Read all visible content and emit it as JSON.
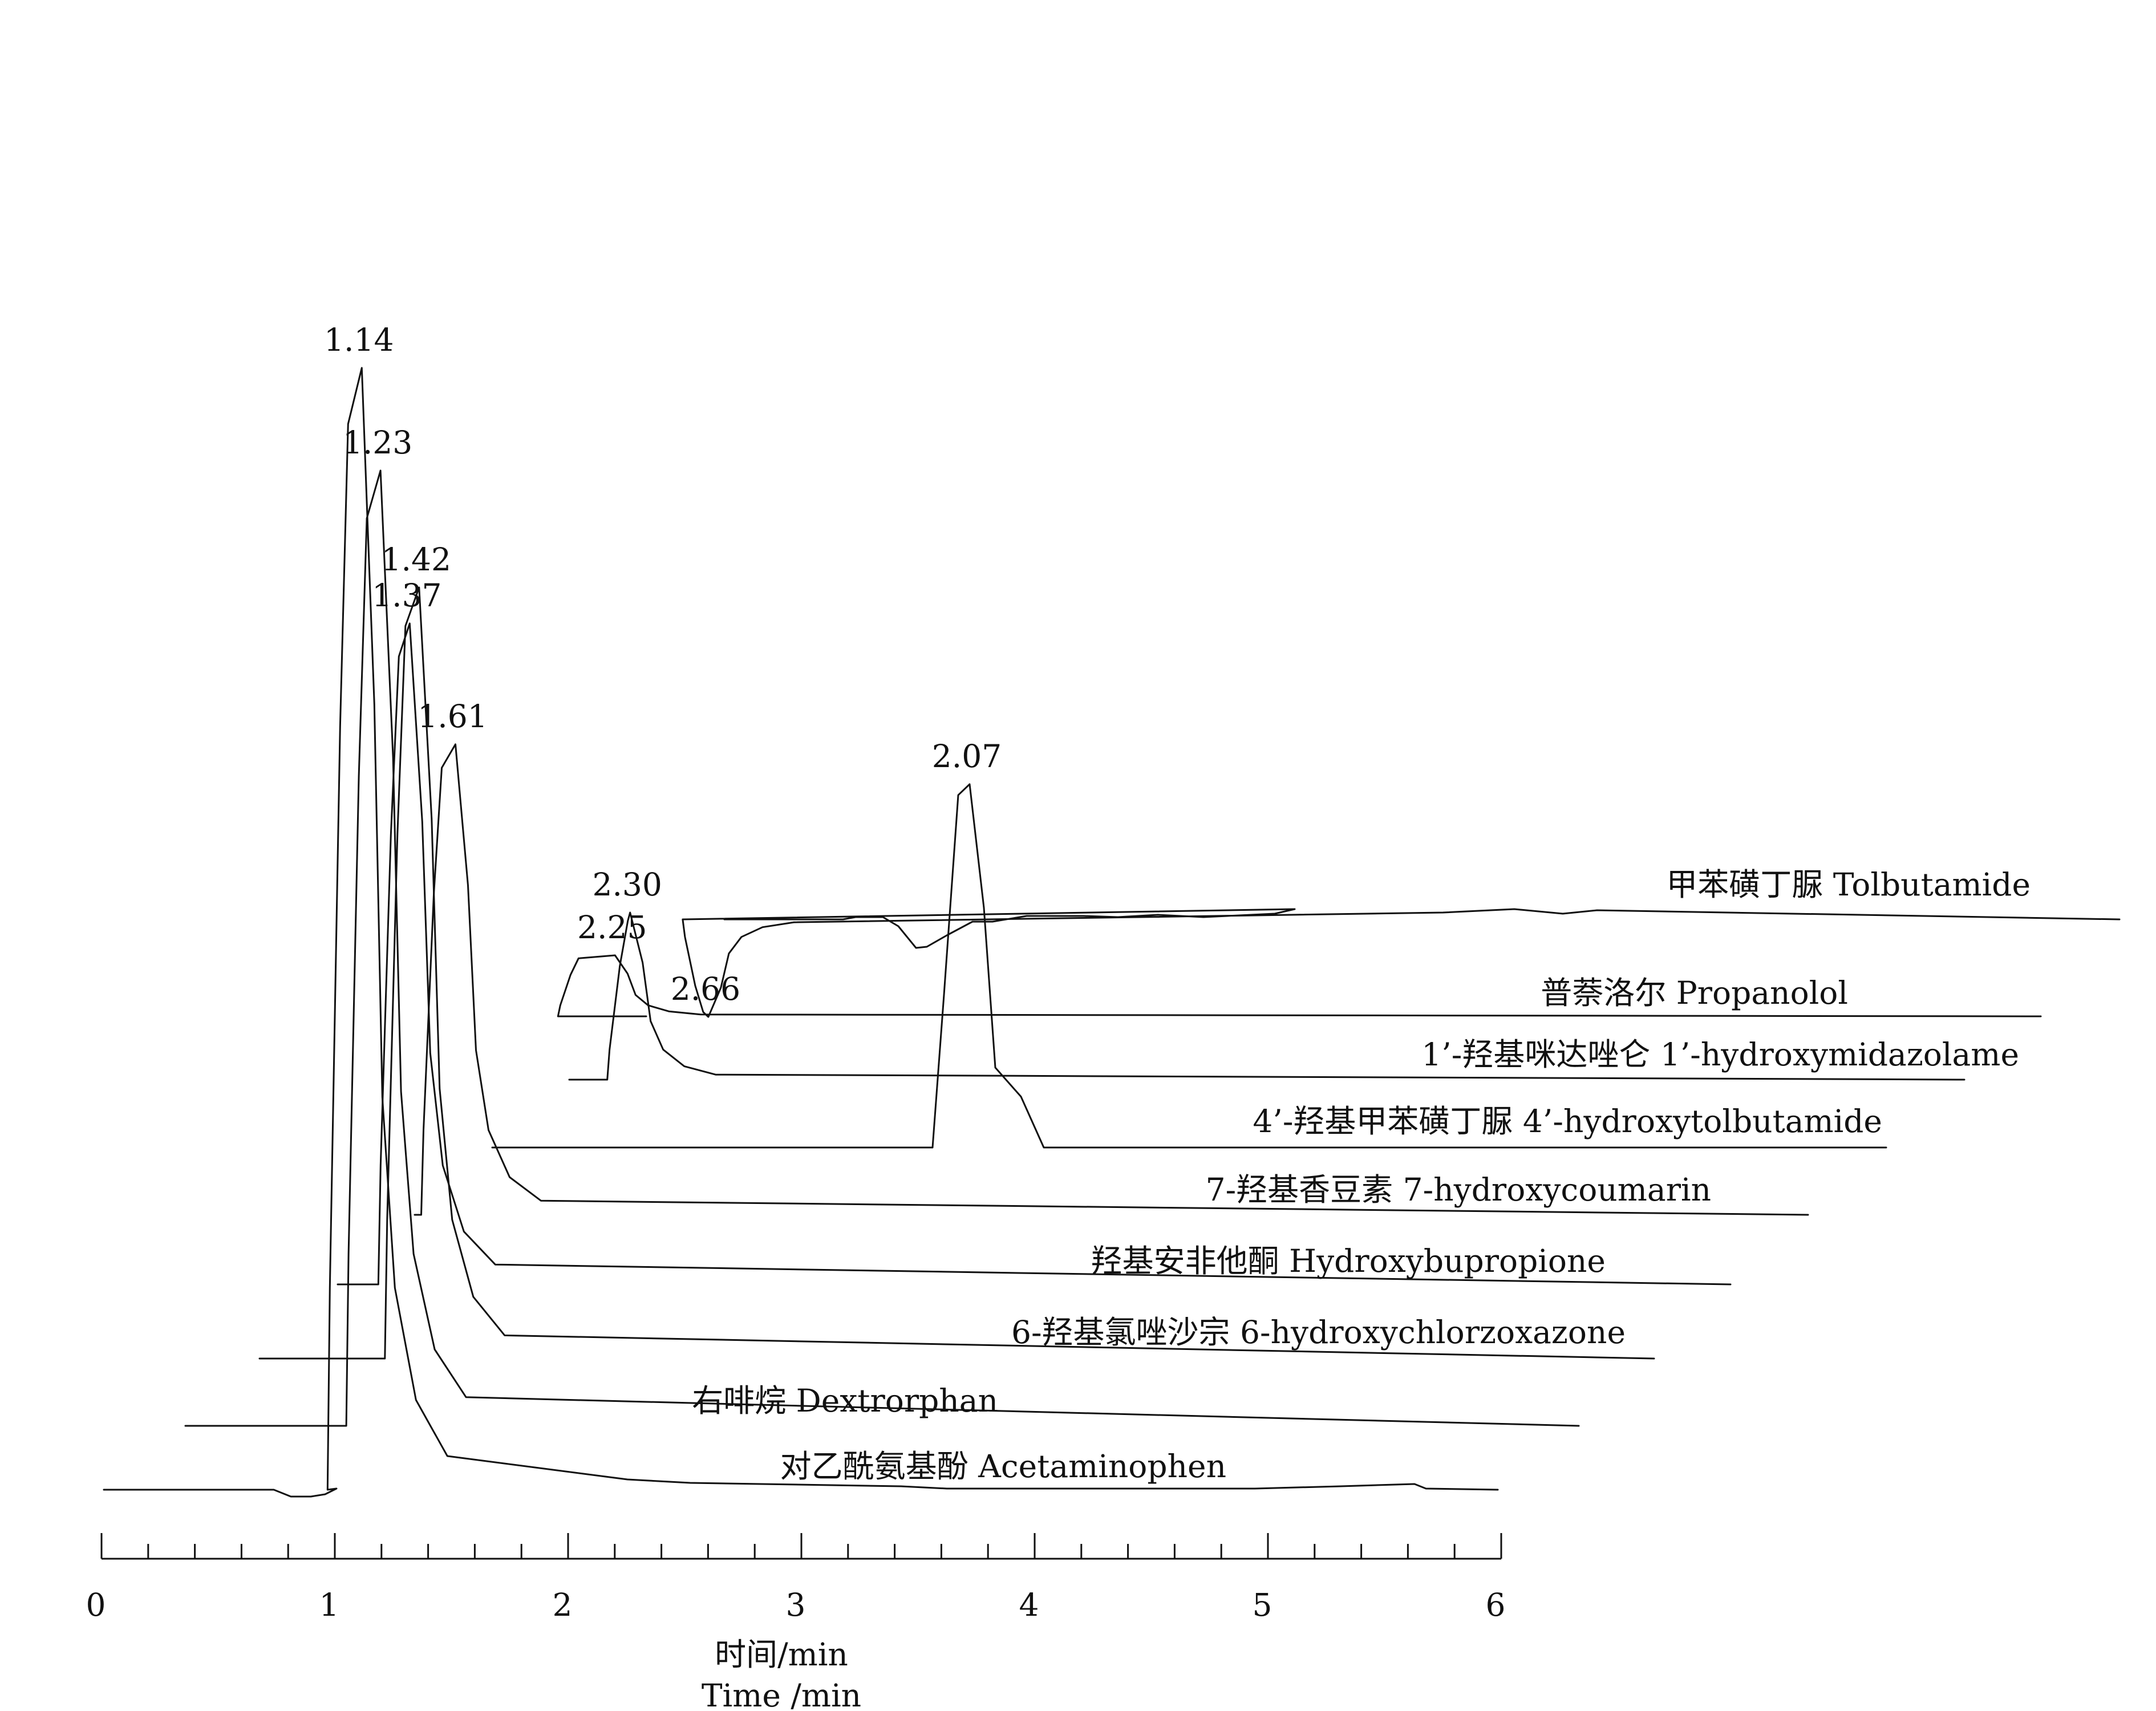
{
  "chart_data": {
    "type": "line",
    "title": "",
    "xlabel": [
      "时间/min",
      "Time /min"
    ],
    "ylabel": "",
    "xlim": [
      0,
      6
    ],
    "x_ticks": [
      "0",
      "1",
      "2",
      "3",
      "4",
      "5",
      "6"
    ],
    "minor_ticks_per_major": 5,
    "series": [
      {
        "name": "对乙酰氨基酚 Acetaminophen",
        "peak_label": "1.14",
        "peak_time": 1.14
      },
      {
        "name": "右啡烷 Dextrorphan",
        "peak_label": "1.23",
        "peak_time": 1.23
      },
      {
        "name": "6-羟基氯唑沙宗 6-hydroxychlorzoxazone",
        "peak_label": "1.42",
        "peak_time": 1.42
      },
      {
        "name": "羟基安非他酮 Hydroxybupropione",
        "peak_label": "1.37",
        "peak_time": 1.37
      },
      {
        "name": "7-羟基香豆素 7-hydroxycoumarin",
        "peak_label": "1.61",
        "peak_time": 1.61
      },
      {
        "name": "4’-羟基甲苯磺丁脲 4’-hydroxytolbutamide",
        "peak_label": "2.07",
        "peak_time": 2.07
      },
      {
        "name": "1’-羟基咪达唑仑 1’-hydroxymidazolame",
        "peak_label": "2.30",
        "peak_time": 2.3
      },
      {
        "name": "普萘洛尔 Propanolol",
        "peak_label": "2.25",
        "peak_time": 2.25
      },
      {
        "name": "甲苯磺丁脲 Tolbutamide",
        "peak_label": "2.66",
        "peak_time": 2.66
      }
    ]
  }
}
